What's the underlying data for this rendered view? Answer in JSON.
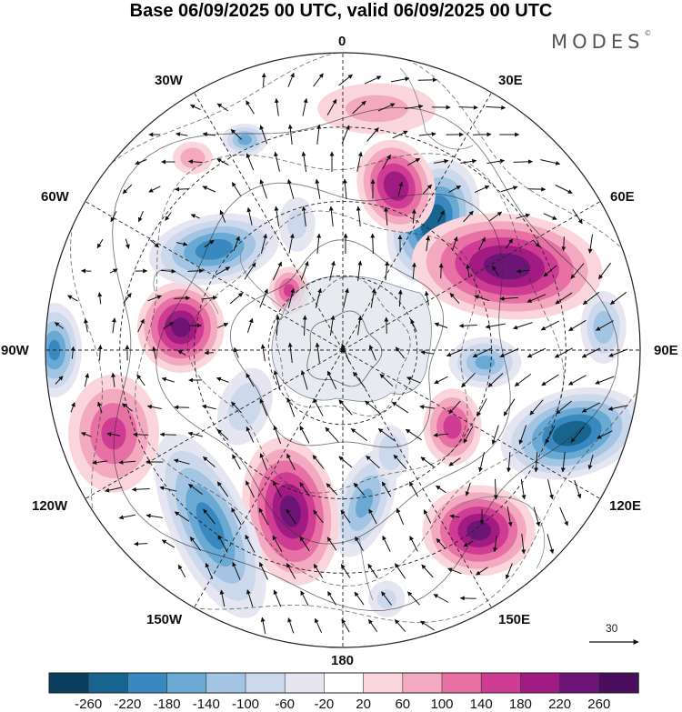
{
  "title": "Base 06/09/2025 00 UTC, valid 06/09/2025 00 UTC",
  "brand": "MODES",
  "brand_mark": "©",
  "map": {
    "projection": "polar-stereographic-south",
    "longitude_labels": {
      "top": "0",
      "bottom": "180",
      "left": "90W",
      "right": "90E",
      "upper_left_1": "30W",
      "upper_left_2": "60W",
      "upper_right_1": "30E",
      "upper_right_2": "60E",
      "lower_left_1": "120W",
      "lower_left_2": "150W",
      "lower_right_1": "120E",
      "lower_right_2": "150E"
    },
    "reference_vector": {
      "label": "30"
    }
  },
  "colorbar": {
    "ticks": [
      "-260",
      "-220",
      "-180",
      "-140",
      "-100",
      "-60",
      "-20",
      "20",
      "60",
      "100",
      "140",
      "180",
      "220",
      "260"
    ],
    "colors": [
      "#0b3d5e",
      "#17648f",
      "#3a88c0",
      "#6aa9d4",
      "#a3c4e3",
      "#ccd8ec",
      "#e6e6f2",
      "#ffffff",
      "#fad6dc",
      "#f3a9bf",
      "#e770a4",
      "#cf3c93",
      "#a11b82",
      "#6c1577",
      "#4a0d5e"
    ]
  },
  "anomalies": [
    {
      "lon": 35,
      "r": 0.53,
      "value": -250,
      "a": 48,
      "b": 70,
      "rot": 20
    },
    {
      "lon": 63,
      "r": 0.62,
      "value": 240,
      "a": 105,
      "b": 58,
      "rot": 5
    },
    {
      "lon": 95,
      "r": 0.48,
      "value": -140,
      "a": 40,
      "b": 28,
      "rot": 0
    },
    {
      "lon": 110,
      "r": 0.82,
      "value": -250,
      "a": 80,
      "b": 48,
      "rot": -15
    },
    {
      "lon": 143,
      "r": 0.76,
      "value": 230,
      "a": 62,
      "b": 50,
      "rot": 0
    },
    {
      "lon": 125,
      "r": 0.45,
      "value": 150,
      "a": 32,
      "b": 42,
      "rot": 0
    },
    {
      "lon": 172,
      "r": 0.52,
      "value": -140,
      "a": 30,
      "b": 62,
      "rot": 20
    },
    {
      "lon": -162,
      "r": 0.57,
      "value": 230,
      "a": 52,
      "b": 82,
      "rot": -10
    },
    {
      "lon": -143,
      "r": 0.74,
      "value": -190,
      "a": 44,
      "b": 110,
      "rot": -25
    },
    {
      "lon": -110,
      "r": 0.82,
      "value": 140,
      "a": 50,
      "b": 65,
      "rot": 0
    },
    {
      "lon": -82,
      "r": 0.55,
      "value": 230,
      "a": 48,
      "b": 50,
      "rot": 0
    },
    {
      "lon": -90,
      "r": 0.97,
      "value": -180,
      "a": 30,
      "b": 52,
      "rot": 0
    },
    {
      "lon": -52,
      "r": 0.55,
      "value": -200,
      "a": 72,
      "b": 38,
      "rot": -10
    },
    {
      "lon": -38,
      "r": 0.82,
      "value": 80,
      "a": 22,
      "b": 18,
      "rot": 0
    },
    {
      "lon": -25,
      "r": 0.78,
      "value": -150,
      "a": 25,
      "b": 18,
      "rot": 0
    },
    {
      "lon": 18,
      "r": 0.58,
      "value": 210,
      "a": 42,
      "b": 52,
      "rot": -20
    },
    {
      "lon": -42,
      "r": 0.27,
      "value": 140,
      "a": 22,
      "b": 26,
      "rot": 0
    },
    {
      "lon": 8,
      "r": 0.82,
      "value": 60,
      "a": 65,
      "b": 28,
      "rot": 0
    },
    {
      "lon": 85,
      "r": 0.88,
      "value": -120,
      "a": 25,
      "b": 40,
      "rot": 0
    },
    {
      "lon": -120,
      "r": 0.38,
      "value": -80,
      "a": 28,
      "b": 44,
      "rot": 20
    },
    {
      "lon": -20,
      "r": 0.45,
      "value": -60,
      "a": 20,
      "b": 30,
      "rot": 0
    },
    {
      "lon": 155,
      "r": 0.38,
      "value": -90,
      "a": 20,
      "b": 30,
      "rot": 0
    },
    {
      "lon": 170,
      "r": 0.85,
      "value": -60,
      "a": 20,
      "b": 20,
      "rot": 0
    }
  ]
}
